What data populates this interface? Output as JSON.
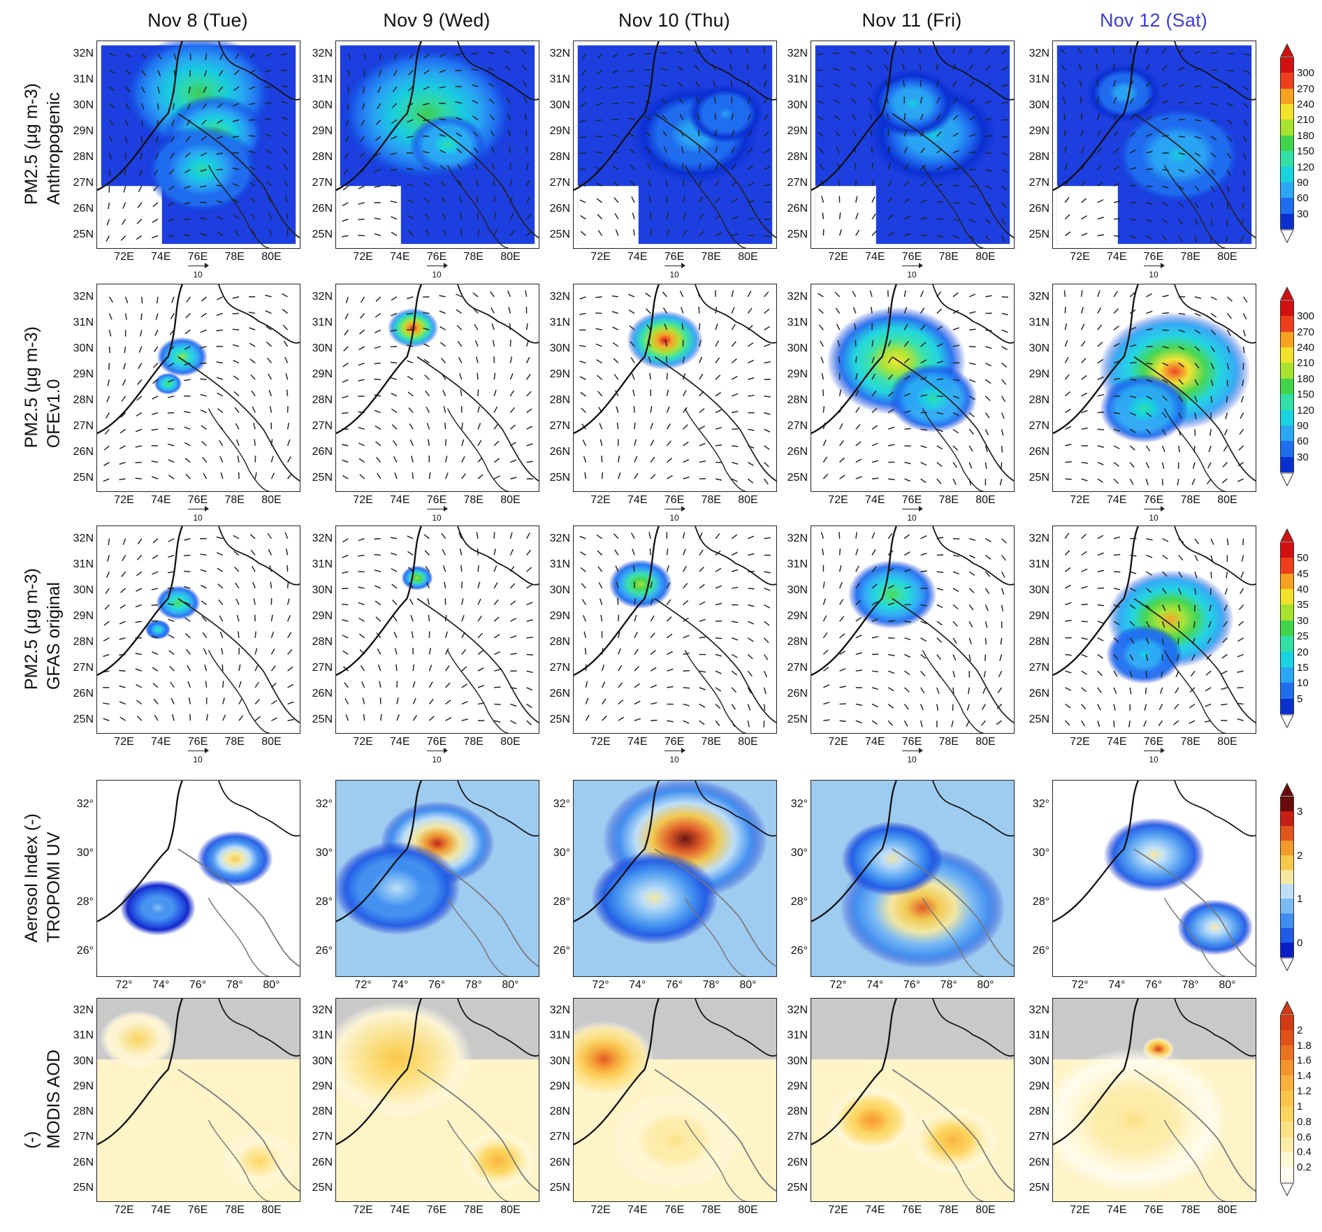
{
  "columns": [
    "Nov 8 (Tue)",
    "Nov 9 (Wed)",
    "Nov 10 (Thu)",
    "Nov 11 (Fri)",
    "Nov 12 (Sat)"
  ],
  "title_colors": [
    "#111111",
    "#111111",
    "#111111",
    "#111111",
    "#3b3bdc"
  ],
  "rows": [
    {
      "id": "anthropogenic",
      "label_lines": [
        "Anthropogenic",
        "PM2.5 (μg m-3)"
      ],
      "ylabels": [
        "32N",
        "31N",
        "30N",
        "29N",
        "28N",
        "27N",
        "26N",
        "25N"
      ],
      "xlabels": [
        "72E",
        "74E",
        "76E",
        "78E",
        "80E"
      ],
      "ref_vector": "10",
      "colorbar": {
        "ticks": [
          "30",
          "60",
          "90",
          "120",
          "150",
          "180",
          "210",
          "240",
          "270",
          "300"
        ],
        "colors": [
          "#0a2fd0",
          "#1f6ef0",
          "#2aa8f4",
          "#18d3e0",
          "#30e0a6",
          "#3fd44a",
          "#a6e22e",
          "#f2e32a",
          "#f7a21e",
          "#ef3e1c",
          "#d40f10"
        ]
      },
      "fields": [
        [
          [
            50,
            25,
            120,
            0.45
          ],
          [
            58,
            45,
            80,
            0.5
          ],
          [
            52,
            62,
            90,
            0.35
          ]
        ],
        [
          [
            45,
            35,
            140,
            0.45
          ],
          [
            55,
            50,
            60,
            0.4
          ]
        ],
        [
          [
            60,
            45,
            100,
            0.2
          ],
          [
            75,
            35,
            60,
            0.15
          ]
        ],
        [
          [
            60,
            45,
            100,
            0.25
          ],
          [
            50,
            30,
            70,
            0.25
          ]
        ],
        [
          [
            62,
            55,
            100,
            0.3
          ],
          [
            35,
            25,
            60,
            0.2
          ]
        ]
      ]
    },
    {
      "id": "ofev10",
      "label_lines": [
        "OFEv1.0",
        "PM2.5 (μg m-3)"
      ],
      "ylabels": [
        "32N",
        "31N",
        "30N",
        "29N",
        "28N",
        "27N",
        "26N",
        "25N"
      ],
      "xlabels": [
        "72E",
        "74E",
        "76E",
        "78E",
        "80E"
      ],
      "ref_vector": "10",
      "colorbar": {
        "ticks": [
          "30",
          "60",
          "90",
          "120",
          "150",
          "180",
          "210",
          "240",
          "270",
          "300"
        ],
        "colors": [
          "#0a2fd0",
          "#1f6ef0",
          "#2aa8f4",
          "#18d3e0",
          "#30e0a6",
          "#3fd44a",
          "#a6e22e",
          "#f2e32a",
          "#f7a21e",
          "#ef3e1c",
          "#d40f10"
        ]
      },
      "fields": [
        [
          [
            42,
            35,
            40,
            0.55
          ],
          [
            35,
            48,
            22,
            0.45
          ]
        ],
        [
          [
            38,
            21,
            40,
            1.0
          ]
        ],
        [
          [
            45,
            27,
            60,
            0.95
          ]
        ],
        [
          [
            42,
            37,
            110,
            0.7
          ],
          [
            60,
            55,
            70,
            0.4
          ]
        ],
        [
          [
            60,
            42,
            120,
            0.85
          ],
          [
            45,
            60,
            70,
            0.4
          ]
        ]
      ]
    },
    {
      "id": "gfas",
      "label_lines": [
        "GFAS original",
        "PM2.5 (μg m-3)"
      ],
      "ylabels": [
        "32N",
        "31N",
        "30N",
        "29N",
        "28N",
        "27N",
        "26N",
        "25N"
      ],
      "xlabels": [
        "72E",
        "74E",
        "76E",
        "78E",
        "80E"
      ],
      "ref_vector": "10",
      "colorbar": {
        "ticks": [
          "5",
          "10",
          "15",
          "20",
          "25",
          "30",
          "35",
          "40",
          "45",
          "50"
        ],
        "colors": [
          "#0a2fd0",
          "#1f6ef0",
          "#2aa8f4",
          "#18d3e0",
          "#30e0a6",
          "#3fd44a",
          "#a6e22e",
          "#f2e32a",
          "#f7a21e",
          "#ef3e1c",
          "#d40f10"
        ]
      },
      "fields": [
        [
          [
            40,
            37,
            35,
            0.45
          ],
          [
            30,
            50,
            20,
            0.35
          ]
        ],
        [
          [
            40,
            25,
            25,
            0.6
          ]
        ],
        [
          [
            33,
            28,
            50,
            0.6
          ]
        ],
        [
          [
            40,
            33,
            70,
            0.5
          ]
        ],
        [
          [
            58,
            45,
            100,
            0.8
          ],
          [
            45,
            62,
            60,
            0.3
          ]
        ]
      ]
    },
    {
      "id": "tropomi",
      "label_lines": [
        "TROPOMI UV",
        "Aerosol Index (-)"
      ],
      "ylabels": [
        "32°",
        "30°",
        "28°",
        "26°"
      ],
      "xlabels": [
        "72°",
        "74°",
        "76°",
        "78°",
        "80°"
      ],
      "ref_vector": "",
      "colorbar": {
        "ticks": [
          "0",
          "1",
          "2",
          "3"
        ],
        "colors": [
          "#0a1ec8",
          "#1f5be6",
          "#3f8ef0",
          "#7cbaf4",
          "#bfdff8",
          "#f5e8a0",
          "#f7c94a",
          "#f29a2a",
          "#e2561d",
          "#c81f14",
          "#6b0a0a"
        ]
      },
      "fields": [
        [
          [
            68,
            40,
            60,
            0.6
          ],
          [
            30,
            65,
            60,
            0.25
          ]
        ],
        [
          [
            50,
            32,
            90,
            0.9
          ],
          [
            30,
            55,
            100,
            0.4
          ]
        ],
        [
          [
            55,
            30,
            130,
            1.0
          ],
          [
            40,
            60,
            100,
            0.5
          ]
        ],
        [
          [
            55,
            65,
            130,
            0.8
          ],
          [
            40,
            40,
            80,
            0.5
          ]
        ],
        [
          [
            50,
            38,
            80,
            0.45
          ],
          [
            80,
            75,
            60,
            0.5
          ]
        ]
      ]
    },
    {
      "id": "modis",
      "label_lines": [
        "MODIS AOD",
        "(-)"
      ],
      "ylabels": [
        "32N",
        "31N",
        "30N",
        "29N",
        "28N",
        "27N",
        "26N",
        "25N"
      ],
      "xlabels": [
        "72E",
        "74E",
        "76E",
        "78E",
        "80E"
      ],
      "ref_vector": "",
      "colorbar": {
        "ticks": [
          "0.2",
          "0.4",
          "0.6",
          "0.8",
          "1",
          "1.2",
          "1.4",
          "1.6",
          "1.8",
          "2"
        ],
        "colors": [
          "#fffdf0",
          "#fff6d2",
          "#fdeba8",
          "#fde083",
          "#fcd55e",
          "#fbc54a",
          "#f9b03c",
          "#f4942e",
          "#ea7322",
          "#e0521a",
          "#d33a12"
        ]
      },
      "fields": [
        [
          [
            20,
            20,
            60,
            0.35
          ],
          [
            80,
            80,
            60,
            0.35
          ]
        ],
        [
          [
            30,
            30,
            120,
            0.5
          ],
          [
            80,
            80,
            60,
            0.6
          ]
        ],
        [
          [
            15,
            30,
            80,
            0.85
          ],
          [
            50,
            70,
            100,
            0.3
          ]
        ],
        [
          [
            30,
            60,
            70,
            0.7
          ],
          [
            70,
            70,
            70,
            0.6
          ]
        ],
        [
          [
            52,
            25,
            25,
            1.0
          ],
          [
            40,
            60,
            150,
            0.25
          ]
        ]
      ]
    }
  ]
}
